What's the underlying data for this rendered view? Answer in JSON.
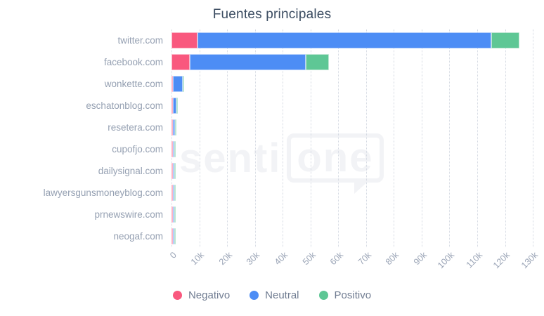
{
  "chart_data": {
    "type": "bar",
    "orientation": "horizontal",
    "stacked": true,
    "title": "Fuentes principales",
    "categories": [
      "twitter.com",
      "facebook.com",
      "wonkette.com",
      "eschatonblog.com",
      "resetera.com",
      "cupofjo.com",
      "dailysignal.com",
      "lawyersgunsmoneyblog.com",
      "prnewswire.com",
      "neogaf.com"
    ],
    "series": [
      {
        "name": "Negativo",
        "color": "#f9587e",
        "color_light": "#fbb3c6",
        "values": [
          9300,
          6700,
          500,
          150,
          100,
          80,
          80,
          70,
          60,
          60
        ]
      },
      {
        "name": "Neutral",
        "color": "#4d8df5",
        "color_light": "#b4cffb",
        "values": [
          105700,
          41600,
          3600,
          1300,
          700,
          620,
          600,
          560,
          520,
          480
        ]
      },
      {
        "name": "Positivo",
        "color": "#5ec795",
        "color_light": "#bce6d2",
        "values": [
          10100,
          8300,
          450,
          100,
          50,
          50,
          50,
          50,
          40,
          40
        ]
      }
    ],
    "x_axis": {
      "ticks": [
        "0",
        "10k",
        "20k",
        "30k",
        "40k",
        "50k",
        "60k",
        "70k",
        "80k",
        "90k",
        "100k",
        "110k",
        "120k",
        "130k"
      ],
      "tick_values": [
        0,
        10000,
        20000,
        30000,
        40000,
        50000,
        60000,
        70000,
        80000,
        90000,
        100000,
        110000,
        120000,
        130000
      ],
      "max": 133000
    },
    "legend_position": "bottom",
    "grid": "dotted-vertical",
    "watermark": {
      "text": "senti",
      "bubble_text": "one"
    }
  }
}
